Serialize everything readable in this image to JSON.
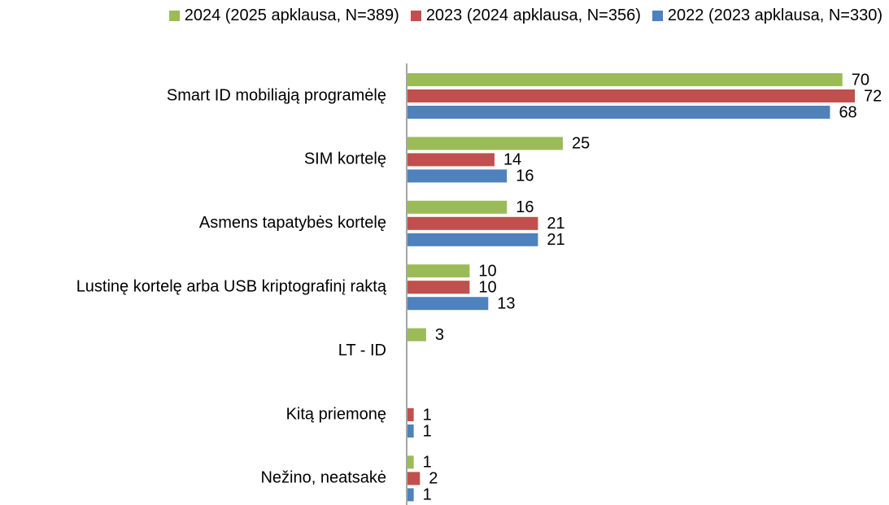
{
  "chart_data": {
    "type": "hbar",
    "categories": [
      "Smart ID mobiliąją programėlę",
      "SIM kortelę",
      "Asmens tapatybės kortelę",
      "Lustinę kortelę arba USB kriptografinį raktą",
      "LT - ID",
      "Kitą priemonę",
      "Nežino, neatsakė"
    ],
    "series": [
      {
        "name": "2024 (2025 apklausa, N=389)",
        "color": "#9bbb59",
        "values": [
          70,
          25,
          16,
          10,
          3,
          null,
          1
        ]
      },
      {
        "name": "2023 (2024 apklausa, N=356)",
        "color": "#c0504d",
        "values": [
          72,
          14,
          21,
          10,
          null,
          1,
          2
        ]
      },
      {
        "name": "2022 (2023 apklausa, N=330)",
        "color": "#4f81bd",
        "values": [
          68,
          16,
          21,
          13,
          null,
          1,
          1
        ]
      }
    ],
    "legend": "top"
  }
}
